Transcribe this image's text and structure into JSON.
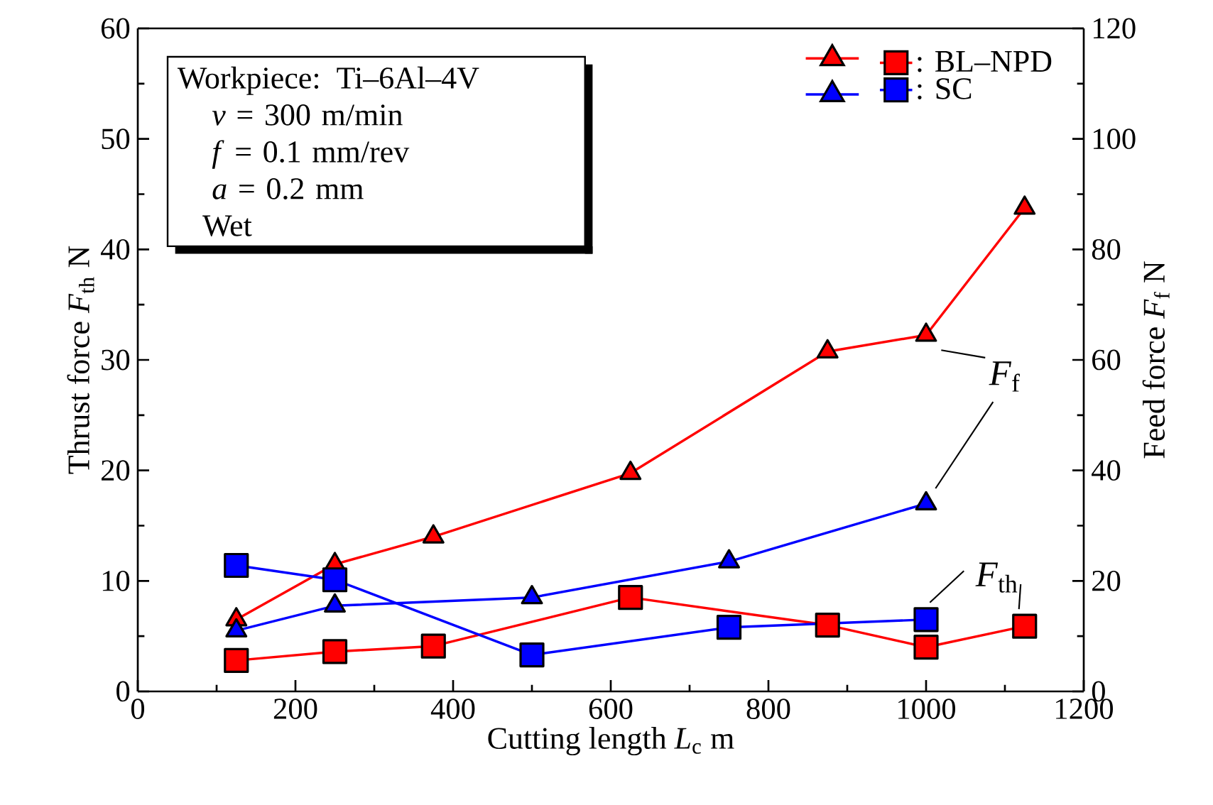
{
  "chart_data": {
    "type": "line",
    "xlabel": "Cutting length   *L*$_{c}$   m",
    "ylabel": "Thrust force   *F*$_{th}$   N",
    "y2label": "Feed force   *F*$_{f}$   N",
    "xlim": [
      0,
      1200
    ],
    "xticks": [
      0,
      200,
      400,
      600,
      800,
      1000,
      1200
    ],
    "ylim": [
      0,
      60
    ],
    "yticks": [
      0,
      10,
      20,
      30,
      40,
      50,
      60
    ],
    "y2lim": [
      0,
      120
    ],
    "y2ticks": [
      0,
      20,
      40,
      60,
      80,
      100,
      120
    ],
    "grid": false,
    "legend": "top right",
    "line_style": "solid",
    "series": [
      {
        "color": "#ff0000",
        "marker": "triangle",
        "axis": "y2",
        "x": [
          125,
          250,
          375,
          625,
          875,
          1000,
          1125
        ],
        "values": [
          13,
          23,
          28,
          39.5,
          61.5,
          64.5,
          87.5
        ]
      },
      {
        "color": "#0000ff",
        "marker": "triangle",
        "axis": "y2",
        "x": [
          125,
          250,
          500,
          750,
          1000
        ],
        "values": [
          11,
          15.5,
          17,
          23.5,
          34
        ]
      },
      {
        "name": ": BL–NPD",
        "color": "#ff0000",
        "marker": "square",
        "x": [
          125,
          250,
          375,
          625,
          875,
          1000,
          1125
        ],
        "values": [
          2.8,
          3.6,
          4.1,
          8.5,
          6,
          4,
          5.9
        ]
      },
      {
        "name": ": SC",
        "color": "#0000ff",
        "marker": "square",
        "x": [
          125,
          250,
          500,
          750,
          1000
        ],
        "values": [
          11.4,
          10.1,
          3.3,
          5.8,
          6.5
        ]
      }
    ],
    "annotations": [
      "Workpiece: Ti–6Al–4V",
      "*v* = 300 m/min",
      "*f* = 0.1 mm/rev",
      "*a* = 0.2 mm",
      "Wet",
      "*F*$_{f}$",
      "*F*$_{th}$"
    ]
  }
}
